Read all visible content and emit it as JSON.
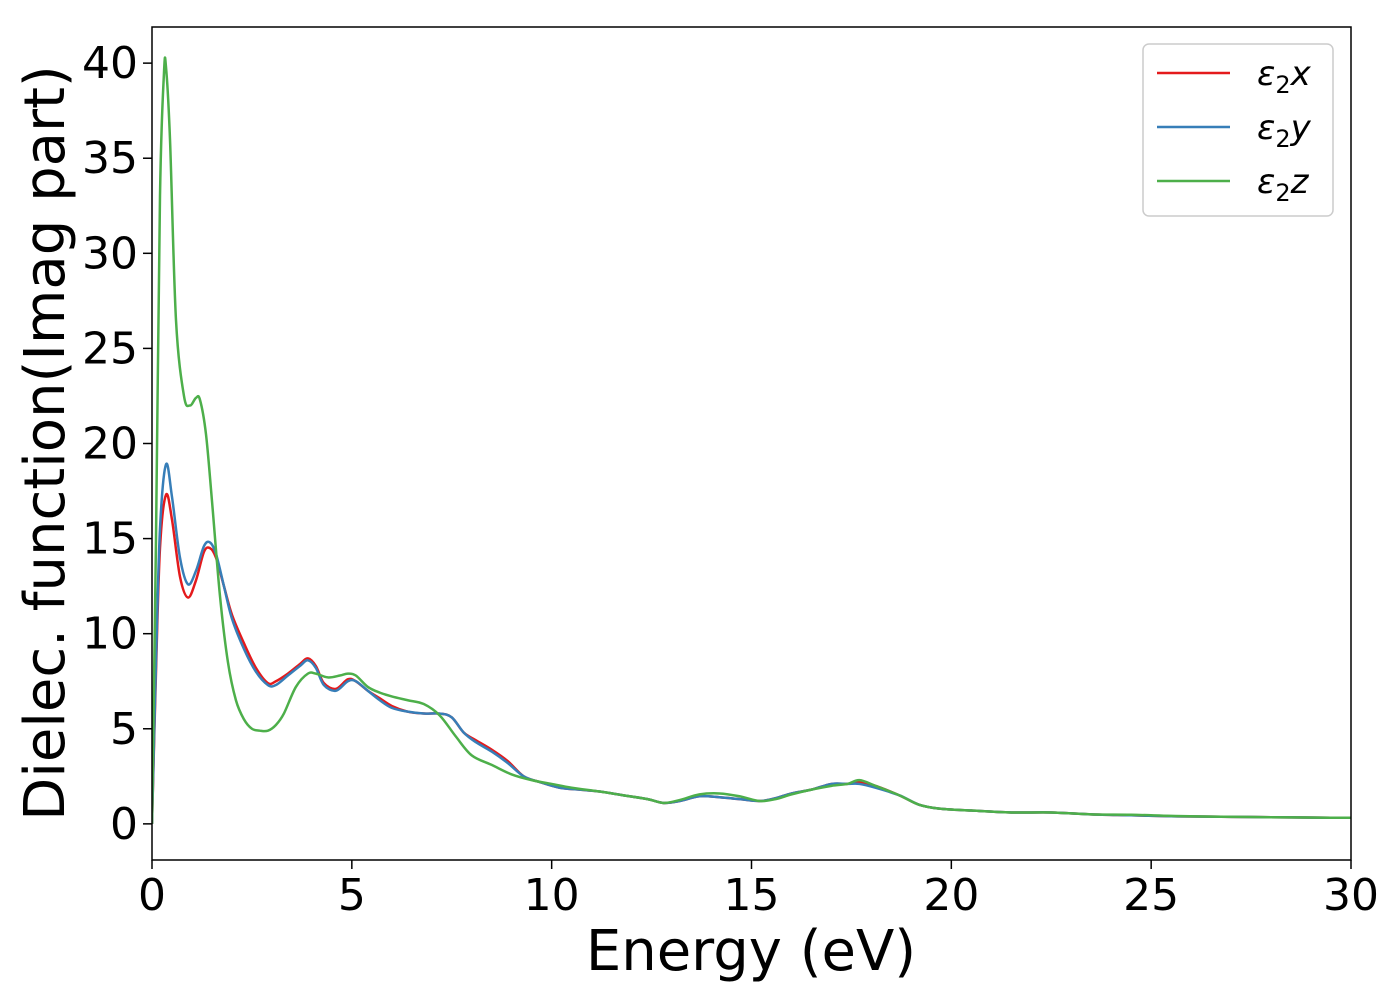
{
  "chart_data": {
    "type": "line",
    "xlabel": "Energy (eV)",
    "ylabel": "Dielec. function(Imag part)",
    "xlim": [
      0,
      30
    ],
    "ylim": [
      -1.9,
      41.9
    ],
    "xticks": [
      0,
      5,
      10,
      15,
      20,
      25,
      30
    ],
    "yticks": [
      0,
      5,
      10,
      15,
      20,
      25,
      30,
      35,
      40
    ],
    "grid": false,
    "legend_position": "top-right",
    "series": [
      {
        "name": "ε2x",
        "color": "#e41a1c",
        "x": [
          0,
          0.1,
          0.2,
          0.35,
          0.5,
          0.7,
          0.9,
          1.1,
          1.3,
          1.45,
          1.6,
          1.8,
          2.0,
          2.3,
          2.6,
          2.9,
          3.1,
          3.4,
          3.7,
          3.9,
          4.1,
          4.3,
          4.6,
          4.9,
          5.1,
          5.4,
          5.7,
          6.0,
          6.4,
          6.8,
          7.2,
          7.5,
          7.8,
          8.1,
          8.5,
          8.9,
          9.3,
          9.7,
          10.2,
          10.7,
          11.2,
          11.8,
          12.4,
          12.8,
          13.2,
          13.7,
          14.2,
          14.7,
          15.2,
          15.6,
          16.0,
          16.5,
          17.0,
          17.4,
          17.7,
          18.1,
          18.7,
          19.2,
          19.7,
          20.5,
          21.5,
          22.5,
          23.5,
          24.5,
          25.5,
          26.5,
          27.5,
          28.5,
          29.5,
          30
        ],
        "values": [
          0,
          8.0,
          14.5,
          17.3,
          16.0,
          13.0,
          11.9,
          12.8,
          14.3,
          14.5,
          14.0,
          12.5,
          11.0,
          9.5,
          8.2,
          7.4,
          7.5,
          7.9,
          8.4,
          8.7,
          8.3,
          7.4,
          7.1,
          7.6,
          7.5,
          7.0,
          6.6,
          6.2,
          5.9,
          5.8,
          5.8,
          5.6,
          4.8,
          4.4,
          3.9,
          3.3,
          2.5,
          2.2,
          1.9,
          1.8,
          1.7,
          1.5,
          1.3,
          1.1,
          1.2,
          1.45,
          1.4,
          1.3,
          1.2,
          1.35,
          1.6,
          1.8,
          2.1,
          2.1,
          2.2,
          2.0,
          1.5,
          1.0,
          0.8,
          0.7,
          0.6,
          0.6,
          0.5,
          0.45,
          0.4,
          0.38,
          0.36,
          0.34,
          0.32,
          0.32
        ]
      },
      {
        "name": "ε2y",
        "color": "#377eb8",
        "x": [
          0,
          0.1,
          0.2,
          0.35,
          0.5,
          0.7,
          0.9,
          1.1,
          1.3,
          1.45,
          1.6,
          1.8,
          2.0,
          2.3,
          2.6,
          2.9,
          3.1,
          3.4,
          3.7,
          3.9,
          4.1,
          4.3,
          4.6,
          4.9,
          5.1,
          5.4,
          5.7,
          6.0,
          6.4,
          6.8,
          7.2,
          7.5,
          7.8,
          8.1,
          8.5,
          8.9,
          9.3,
          9.7,
          10.2,
          10.7,
          11.2,
          11.8,
          12.4,
          12.8,
          13.2,
          13.7,
          14.2,
          14.7,
          15.2,
          15.6,
          16.0,
          16.5,
          17.0,
          17.4,
          17.7,
          18.1,
          18.7,
          19.2,
          19.7,
          20.5,
          21.5,
          22.5,
          23.5,
          24.5,
          25.5,
          26.5,
          27.5,
          28.5,
          29.5,
          30
        ],
        "values": [
          0,
          8.5,
          15.5,
          18.9,
          17.2,
          14.0,
          12.6,
          13.3,
          14.6,
          14.8,
          14.2,
          12.5,
          10.8,
          9.2,
          8.0,
          7.3,
          7.3,
          7.8,
          8.3,
          8.6,
          8.2,
          7.3,
          7.0,
          7.5,
          7.5,
          7.0,
          6.5,
          6.1,
          5.9,
          5.8,
          5.8,
          5.6,
          4.8,
          4.3,
          3.8,
          3.2,
          2.5,
          2.2,
          1.9,
          1.8,
          1.7,
          1.5,
          1.3,
          1.1,
          1.2,
          1.45,
          1.4,
          1.3,
          1.2,
          1.35,
          1.6,
          1.8,
          2.1,
          2.1,
          2.1,
          1.9,
          1.5,
          1.0,
          0.8,
          0.7,
          0.6,
          0.6,
          0.5,
          0.45,
          0.4,
          0.38,
          0.36,
          0.34,
          0.32,
          0.32
        ]
      },
      {
        "name": "ε2z",
        "color": "#4daf4a",
        "x": [
          0,
          0.1,
          0.2,
          0.3,
          0.35,
          0.45,
          0.6,
          0.8,
          0.95,
          1.1,
          1.2,
          1.35,
          1.5,
          1.7,
          1.9,
          2.1,
          2.3,
          2.5,
          2.7,
          2.9,
          3.1,
          3.3,
          3.6,
          3.9,
          4.1,
          4.4,
          4.7,
          4.9,
          5.1,
          5.4,
          5.7,
          6.0,
          6.4,
          6.8,
          7.2,
          7.6,
          8.0,
          8.5,
          9.0,
          9.5,
          10.0,
          10.5,
          11.2,
          11.8,
          12.4,
          12.8,
          13.2,
          13.7,
          14.2,
          14.7,
          15.2,
          15.6,
          16.0,
          16.5,
          17.0,
          17.4,
          17.7,
          18.1,
          18.7,
          19.2,
          19.7,
          20.5,
          21.5,
          22.5,
          23.5,
          24.5,
          25.5,
          26.5,
          27.5,
          28.5,
          29.5,
          30
        ],
        "values": [
          0,
          15.0,
          33.0,
          39.5,
          39.8,
          36.0,
          26.5,
          22.5,
          22.0,
          22.4,
          22.3,
          20.5,
          17.0,
          12.0,
          8.5,
          6.5,
          5.5,
          5.0,
          4.9,
          4.9,
          5.2,
          5.8,
          7.2,
          7.9,
          7.9,
          7.7,
          7.8,
          7.9,
          7.8,
          7.2,
          6.9,
          6.7,
          6.5,
          6.3,
          5.7,
          4.6,
          3.6,
          3.1,
          2.6,
          2.3,
          2.1,
          1.9,
          1.7,
          1.5,
          1.3,
          1.1,
          1.25,
          1.55,
          1.6,
          1.45,
          1.2,
          1.3,
          1.55,
          1.8,
          2.0,
          2.1,
          2.3,
          2.0,
          1.5,
          1.0,
          0.8,
          0.7,
          0.6,
          0.6,
          0.5,
          0.48,
          0.42,
          0.38,
          0.36,
          0.34,
          0.32,
          0.32
        ]
      }
    ]
  }
}
